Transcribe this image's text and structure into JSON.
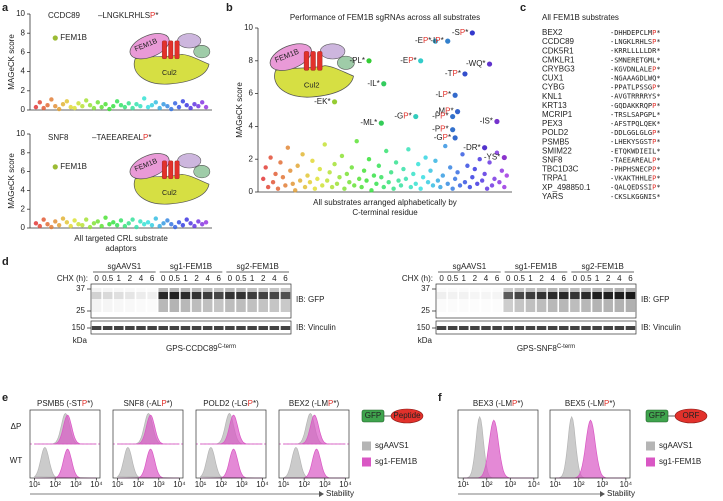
{
  "panel_labels": [
    "a",
    "b",
    "c",
    "d",
    "e",
    "f"
  ],
  "chart_data": [
    {
      "type": "scatter",
      "title": "CCDC89",
      "annotation": "–LNGKLRHLSP*",
      "ylabel": "MAGeCK score",
      "ylim": [
        0,
        10
      ],
      "yticks": [
        0,
        2,
        4,
        6,
        8,
        10
      ],
      "values": [
        0.3,
        0.8,
        0.2,
        0.5,
        1.1,
        0.4,
        0.1,
        0.6,
        0.9,
        0.3,
        0.2,
        0.7,
        0.4,
        1.0,
        0.5,
        0.2,
        0.8,
        0.3,
        0.6,
        0.1,
        0.4,
        0.9,
        0.5,
        0.3,
        0.7,
        0.2,
        0.6,
        0.4,
        1.2,
        0.3,
        0.5,
        0.8,
        0.2,
        0.6,
        0.4,
        0.1,
        0.7,
        0.3,
        0.9,
        0.5,
        0.2,
        0.6,
        0.4,
        0.8,
        0.3
      ],
      "highlight": {
        "x": 5,
        "value": 7.5,
        "label": "FEM1B"
      },
      "diagram_labels": [
        "FEM1B",
        "Cul2"
      ]
    },
    {
      "type": "scatter",
      "title": "SNF8",
      "annotation": "–TAEEAREALP*",
      "ylabel": "MAGeCK score",
      "ylim": [
        0,
        10
      ],
      "yticks": [
        0,
        2,
        4,
        6,
        8,
        10
      ],
      "values": [
        0.5,
        0.2,
        0.9,
        0.4,
        0.1,
        0.7,
        0.3,
        1.0,
        0.6,
        0.2,
        0.8,
        0.4,
        0.3,
        0.9,
        0.1,
        0.5,
        0.7,
        0.2,
        1.1,
        0.4,
        0.6,
        0.3,
        0.8,
        0.2,
        0.5,
        0.9,
        0.1,
        0.7,
        0.4,
        0.6,
        0.3,
        1.0,
        0.2,
        0.5,
        0.8,
        0.4,
        0.1,
        0.6,
        0.3,
        0.9,
        0.5,
        0.2,
        0.7,
        0.4,
        0.6
      ],
      "highlight": {
        "x": 5,
        "value": 6.5,
        "label": "FEM1B"
      },
      "diagram_labels": [
        "FEM1B",
        "Cul2"
      ],
      "xlabel": [
        "All targeted CRL substrate",
        "adaptors"
      ]
    },
    {
      "type": "scatter",
      "title": "Performance of FEM1B sgRNAs across all substrates",
      "ylabel": "MAGeCK score",
      "xlabel": [
        "All substrates arranged alphabetically by",
        "C-terminal residue"
      ],
      "ylim": [
        0,
        10
      ],
      "yticks": [
        0,
        2,
        4,
        6,
        8,
        10
      ],
      "values": [
        0.8,
        1.5,
        0.3,
        2.1,
        0.6,
        1.1,
        0.2,
        1.8,
        0.9,
        0.4,
        2.7,
        1.3,
        0.5,
        0.1,
        1.6,
        0.7,
        2.3,
        0.3,
        1.0,
        0.6,
        1.9,
        0.2,
        0.8,
        1.4,
        0.4,
        2.9,
        0.7,
        1.2,
        0.3,
        1.7,
        0.5,
        0.9,
        2.2,
        0.2,
        1.1,
        0.6,
        1.5,
        0.4,
        3.1,
        0.8,
        0.3,
        1.3,
        0.7,
        2.0,
        0.1,
        1.0,
        0.5,
        1.6,
        0.9,
        0.3,
        2.5,
        0.6,
        1.2,
        0.2,
        1.8,
        0.7,
        0.4,
        1.4,
        0.8,
        2.6,
        0.3,
        1.1,
        0.5,
        1.7,
        0.2,
        0.9,
        2.1,
        0.6,
        1.3,
        0.4,
        1.9,
        0.7,
        0.3,
        1.0,
        2.8,
        0.5,
        1.5,
        0.2,
        0.8,
        1.2,
        0.4,
        2.3,
        0.6,
        1.6,
        0.3,
        0.9,
        1.4,
        0.5,
        2.0,
        0.7,
        1.1,
        0.2,
        1.8,
        0.4,
        0.8,
        2.4,
        0.6,
        1.3,
        0.3,
        1.0
      ],
      "labeled": {
        "x": [
          85,
          70,
          75,
          43,
          64,
          92,
          82,
          49,
          78,
          29,
          79,
          62,
          77,
          95,
          48,
          77,
          78,
          90,
          98
        ],
        "values": [
          9.7,
          9.2,
          9.2,
          8.0,
          8.0,
          7.8,
          7.2,
          6.6,
          5.9,
          5.5,
          4.9,
          4.6,
          4.6,
          4.3,
          4.2,
          3.8,
          3.3,
          2.7,
          2.1
        ],
        "labels": [
          "-SP*",
          "-EP*",
          "-IP*",
          "-PL*",
          "-EP*",
          "-WQ*",
          "-TP*",
          "-IL*",
          "-LP*",
          "-EK*",
          "-MP*",
          "-GP*",
          "-PP*",
          "-IS*",
          "-ML*",
          "-PP*",
          "-GP*",
          "-DR*",
          "-YS*"
        ]
      },
      "diagram_labels": [
        "FEM1B",
        "Cul2"
      ]
    }
  ],
  "panel_c": {
    "title": "All FEM1B substrates",
    "rows": [
      [
        "BEX2",
        "-DHHDEPCLMP*"
      ],
      [
        "CCDC89",
        "-LNGKLRHLSP*"
      ],
      [
        "CDK5R1",
        "-KRRLLLLLDR*"
      ],
      [
        "CMKLR1",
        "-SMNERETGML*"
      ],
      [
        "CRYBG3",
        "-KGVDNLALEP*"
      ],
      [
        "CUX1",
        "-NGAAAGDLWQ*"
      ],
      [
        "CYBG",
        "-PPATLPSSGP*"
      ],
      [
        "KNL1",
        "-AVGTRRRRYS*"
      ],
      [
        "KRT13",
        "-GQDAKKRQPP*"
      ],
      [
        "MCRIP1",
        "-TRSLSAPGPL*"
      ],
      [
        "PEX3",
        "-AFSTPQLQEK*"
      ],
      [
        "POLD2",
        "-DDLGGLGLGP*"
      ],
      [
        "PSMB5",
        "-LHEKYSGSTP*"
      ],
      [
        "SMIM22",
        "-ETQKWDIEIL*"
      ],
      [
        "SNF8",
        "-TAEEAREALP*"
      ],
      [
        "TBC1D3C",
        "-PHPHSNECPP*"
      ],
      [
        "TRPA1",
        "-VKAKTHHLEP*"
      ],
      [
        "XP_498850.1",
        "-QALQEDSSIP*"
      ],
      [
        "YARS",
        "-CKSLKGGNIS*"
      ]
    ]
  },
  "panel_d": {
    "blots": [
      {
        "groups": [
          "sgAAVS1",
          "sg1-FEM1B",
          "sg2-FEM1B"
        ],
        "chx_label": "CHX (h):",
        "times": [
          0,
          0.5,
          1,
          2,
          4,
          6
        ],
        "markers": [
          37,
          25,
          150
        ],
        "marker_unit": "kDa",
        "probes": [
          "IB: GFP",
          "IB: Vinculin"
        ],
        "reporter": "GPS-CCDC89",
        "reporter_sup": "C-term"
      },
      {
        "groups": [
          "sgAAVS1",
          "sg1-FEM1B",
          "sg2-FEM1B"
        ],
        "chx_label": "CHX (h):",
        "times": [
          0,
          0.5,
          1,
          2,
          4,
          6
        ],
        "markers": [
          37,
          25,
          150
        ],
        "marker_unit": "kDa",
        "probes": [
          "IB: GFP",
          "IB: Vinculin"
        ],
        "reporter": "GPS-SNF8",
        "reporter_sup": "C-term"
      }
    ]
  },
  "panel_e": {
    "plots": [
      "PSMB5 (-STP*)",
      "SNF8 (-ALP*)",
      "POLD2 (-LGP*)",
      "BEX2 (-LMP*)"
    ],
    "rows": [
      "ΔP",
      "WT"
    ],
    "log_x": true,
    "xlim": [
      6,
      15000
    ],
    "xticks": [
      {
        "value": 10,
        "label": "10¹"
      },
      {
        "value": 100,
        "label": "10²"
      },
      {
        "value": 1000,
        "label": "10³"
      },
      {
        "value": 10000,
        "label": "10⁴"
      }
    ],
    "xlabel": "Stability",
    "series": [
      {
        "name": "sgAAVS1",
        "color": "#b5b5b5"
      },
      {
        "name": "sg1-FEM1B",
        "color": "#d957c4"
      }
    ],
    "construct": [
      "GFP",
      "Peptide"
    ]
  },
  "panel_f": {
    "plots": [
      "BEX3 (-LMP*)",
      "BEX5 (-LMP*)"
    ],
    "log_x": true,
    "xlim": [
      6,
      15000
    ],
    "xticks": [
      {
        "value": 10,
        "label": "10¹"
      },
      {
        "value": 100,
        "label": "10²"
      },
      {
        "value": 1000,
        "label": "10³"
      },
      {
        "value": 10000,
        "label": "10⁴"
      }
    ],
    "xlabel": "Stability",
    "series": [
      {
        "name": "sgAAVS1",
        "color": "#b5b5b5"
      },
      {
        "name": "sg1-FEM1B",
        "color": "#d957c4"
      }
    ],
    "construct": [
      "GFP",
      "ORF"
    ]
  }
}
